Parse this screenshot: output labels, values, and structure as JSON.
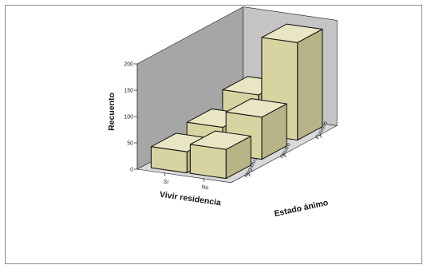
{
  "chart_data": {
    "type": "bar",
    "variant": "3d-clustered",
    "title": "",
    "ylabel": "Recuento",
    "xlabel": "Vivir residencia",
    "zlabel": "Estado ánimo",
    "ylim": [
      0,
      200
    ],
    "yticks": [
      0,
      50,
      100,
      150,
      200
    ],
    "categories": [
      "Sí",
      "No"
    ],
    "series": [
      {
        "name": "Negativo",
        "values": [
          40,
          55
        ]
      },
      {
        "name": "Neutro",
        "values": [
          50,
          80
        ]
      },
      {
        "name": "Positivo",
        "values": [
          75,
          185
        ]
      }
    ],
    "colors": {
      "bar_front": "#d8d4a2",
      "bar_top": "#e9e6c4",
      "bar_side": "#b8b487",
      "wall": "#a6a6a6",
      "back_wall": "#c4c4c4",
      "floor": "#d9d9d9",
      "edge": "#1a1a1a"
    },
    "grid": false
  }
}
